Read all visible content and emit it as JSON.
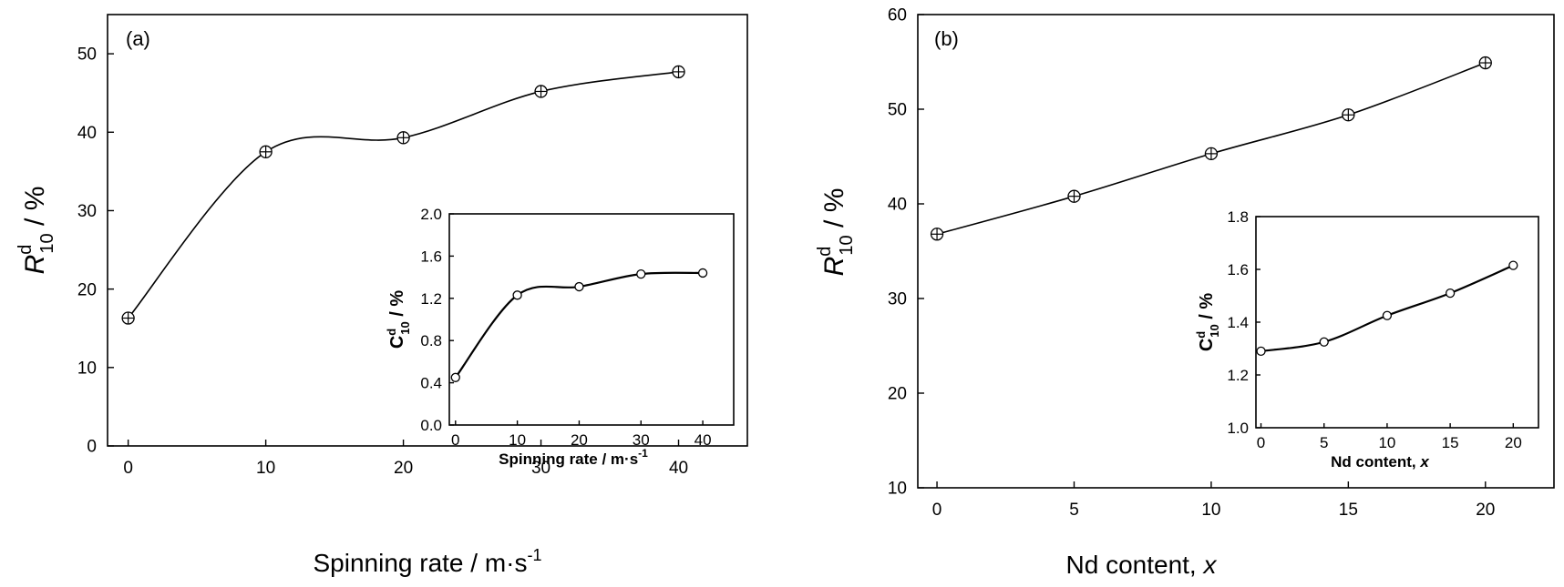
{
  "chart_data": [
    {
      "type": "line",
      "panel_label": "(a)",
      "xlabel": "Spinning rate / m·s",
      "xlabel_sup": "-1",
      "ylabel_var": "R",
      "ylabel_sub": "10",
      "ylabel_sup": "d",
      "ylabel_unit": " / %",
      "xlim": [
        -1.5,
        45
      ],
      "ylim": [
        0,
        55
      ],
      "xticks": [
        0,
        10,
        20,
        30,
        40
      ],
      "yticks": [
        0,
        10,
        20,
        30,
        40,
        50
      ],
      "x": [
        0,
        10,
        20,
        30,
        40
      ],
      "y": [
        16.3,
        37.5,
        39.3,
        45.2,
        47.7
      ],
      "marker": "crossed-circle",
      "inset": {
        "type": "line",
        "xlabel": "Spinning rate / m·s",
        "xlabel_sup": "-1",
        "ylabel_var": "C",
        "ylabel_sub": "10",
        "ylabel_sup": "d",
        "ylabel_unit": " / %",
        "xlim": [
          -1,
          45
        ],
        "ylim": [
          0,
          2.0
        ],
        "xticks": [
          0,
          10,
          20,
          30,
          40
        ],
        "yticks": [
          "0.0",
          "0.4",
          "0.8",
          "1.2",
          "1.6",
          "2.0"
        ],
        "x": [
          0,
          10,
          20,
          30,
          40
        ],
        "y": [
          0.45,
          1.23,
          1.31,
          1.43,
          1.44
        ],
        "marker": "open-circle"
      }
    },
    {
      "type": "line",
      "panel_label": "(b)",
      "xlabel": "Nd content, ",
      "xlabel_var": "x",
      "ylabel_var": "R",
      "ylabel_sub": "10",
      "ylabel_sup": "d",
      "ylabel_unit": " / %",
      "xlim": [
        -0.7,
        22.5
      ],
      "ylim": [
        10,
        60
      ],
      "xticks": [
        0,
        5,
        10,
        15,
        20
      ],
      "yticks": [
        10,
        20,
        30,
        40,
        50,
        60
      ],
      "x": [
        0,
        5,
        10,
        15,
        20
      ],
      "y": [
        36.8,
        40.8,
        45.3,
        49.4,
        54.9
      ],
      "marker": "crossed-circle",
      "inset": {
        "type": "line",
        "xlabel": "Nd content, ",
        "xlabel_var": "x",
        "ylabel_var": "C",
        "ylabel_sub": "10",
        "ylabel_sup": "d",
        "ylabel_unit": " / %",
        "xlim": [
          -0.4,
          22
        ],
        "ylim": [
          1.0,
          1.8
        ],
        "xticks": [
          0,
          5,
          10,
          15,
          20
        ],
        "yticks": [
          "1.0",
          "1.2",
          "1.4",
          "1.6",
          "1.8"
        ],
        "x": [
          0,
          5,
          10,
          15,
          20
        ],
        "y": [
          1.29,
          1.325,
          1.425,
          1.51,
          1.615
        ],
        "marker": "open-circle"
      }
    }
  ]
}
